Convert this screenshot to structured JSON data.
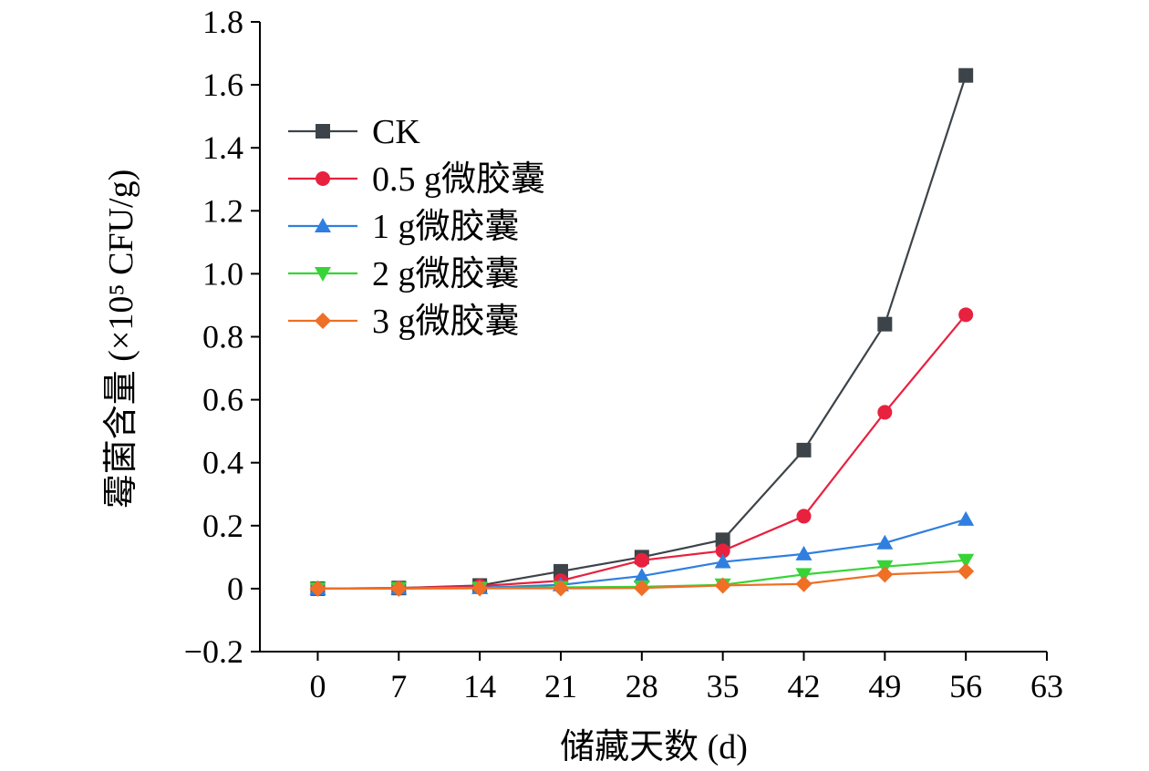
{
  "chart_data": {
    "type": "line",
    "title": "",
    "xlabel": "储藏天数 (d)",
    "ylabel": "霉菌含量 (×10⁵ CFU/g)",
    "x": [
      0,
      7,
      14,
      21,
      28,
      35,
      42,
      49,
      56
    ],
    "xticks": [
      "0",
      "7",
      "14",
      "21",
      "28",
      "35",
      "42",
      "49",
      "56",
      "63"
    ],
    "xlim": [
      -5,
      63
    ],
    "ylim": [
      -0.2,
      1.8
    ],
    "yticks": [
      "−0.2",
      "0",
      "0.2",
      "0.4",
      "0.6",
      "0.8",
      "1.0",
      "1.2",
      "1.4",
      "1.6",
      "1.8"
    ],
    "grid": false,
    "legend_position": "top-left",
    "series": [
      {
        "name": "CK",
        "color": "#3d4449",
        "marker": "square",
        "values": [
          0,
          0.002,
          0.01,
          0.055,
          0.1,
          0.155,
          0.44,
          0.84,
          1.63
        ]
      },
      {
        "name": "0.5 g微胶囊",
        "color": "#e8213f",
        "marker": "circle",
        "values": [
          0,
          0.002,
          0.008,
          0.025,
          0.09,
          0.12,
          0.23,
          0.56,
          0.87
        ]
      },
      {
        "name": "1 g微胶囊",
        "color": "#2f7fe0",
        "marker": "triangle-up",
        "values": [
          0,
          0.001,
          0.003,
          0.012,
          0.04,
          0.085,
          0.11,
          0.145,
          0.22
        ]
      },
      {
        "name": "2 g微胶囊",
        "color": "#37d437",
        "marker": "triangle-down",
        "values": [
          0,
          0.001,
          0.002,
          0.004,
          0.006,
          0.012,
          0.045,
          0.07,
          0.09
        ]
      },
      {
        "name": "3 g微胶囊",
        "color": "#ee6f25",
        "marker": "diamond",
        "values": [
          0,
          0,
          0.001,
          0.001,
          0.002,
          0.01,
          0.015,
          0.045,
          0.055
        ]
      }
    ]
  }
}
